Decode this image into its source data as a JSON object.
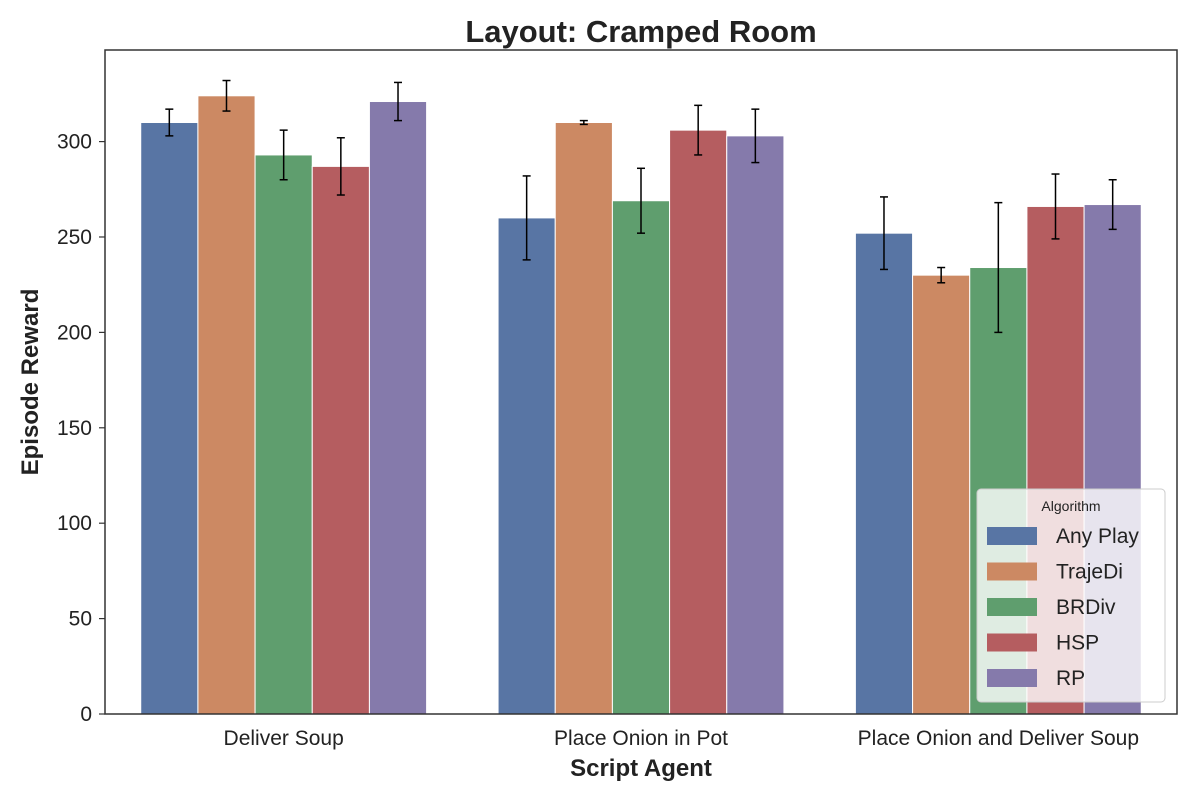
{
  "chart_data": {
    "type": "bar",
    "title": "Layout: Cramped Room",
    "xlabel": "Script Agent",
    "ylabel": "Episode Reward",
    "ylim": [
      0,
      348
    ],
    "yticks": [
      0,
      50,
      100,
      150,
      200,
      250,
      300
    ],
    "grid": false,
    "legend": {
      "title": "Algorithm",
      "placement": "bottom-right"
    },
    "categories": [
      "Deliver Soup",
      "Place Onion in Pot",
      "Place Onion and Deliver Soup"
    ],
    "series": [
      {
        "name": "Any Play",
        "color": "#5875a4",
        "values": [
          310,
          260,
          252
        ],
        "errors": [
          7,
          22,
          19
        ]
      },
      {
        "name": "TrajeDi",
        "color": "#cc8963",
        "values": [
          324,
          310,
          230
        ],
        "errors": [
          8,
          1,
          4
        ]
      },
      {
        "name": "BRDiv",
        "color": "#5f9e6e",
        "values": [
          293,
          269,
          234
        ],
        "errors": [
          13,
          17,
          34
        ]
      },
      {
        "name": "HSP",
        "color": "#b55d60",
        "values": [
          287,
          306,
          266
        ],
        "errors": [
          15,
          13,
          17
        ]
      },
      {
        "name": "RP",
        "color": "#857aab",
        "values": [
          321,
          303,
          267
        ],
        "errors": [
          10,
          14,
          13
        ]
      }
    ]
  }
}
